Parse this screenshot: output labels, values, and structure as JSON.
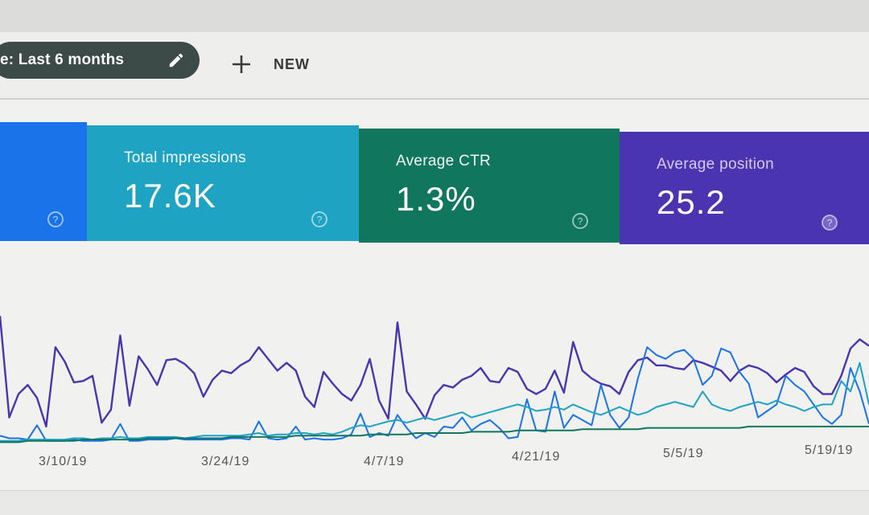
{
  "toolbar": {
    "date_range": "e: Last 6 months",
    "new_label": "NEW"
  },
  "cards": {
    "impressions": {
      "label": "Total impressions",
      "value": "17.6K"
    },
    "ctr": {
      "label": "Average CTR",
      "value": "1.3%"
    },
    "position": {
      "label": "Average position",
      "value": "25.2"
    }
  },
  "colors": {
    "clicks": "#1a73e8",
    "impressions": "#1fa3c3",
    "ctr": "#10775e",
    "position": "#4a34b0"
  },
  "chart_data": {
    "type": "line",
    "x_tick_labels": [
      "3/10/19",
      "3/24/19",
      "4/7/19",
      "4/21/19",
      "5/5/19",
      "5/19/19"
    ],
    "ylim": [
      0,
      1
    ],
    "series": [
      {
        "color": "#4a34b0",
        "values": [
          0.98,
          0.2,
          0.38,
          0.45,
          0.35,
          0.13,
          0.74,
          0.63,
          0.47,
          0.48,
          0.52,
          0.16,
          0.26,
          0.83,
          0.29,
          0.67,
          0.57,
          0.45,
          0.64,
          0.65,
          0.61,
          0.54,
          0.36,
          0.49,
          0.56,
          0.54,
          0.6,
          0.64,
          0.74,
          0.65,
          0.56,
          0.62,
          0.56,
          0.36,
          0.28,
          0.55,
          0.46,
          0.38,
          0.33,
          0.45,
          0.65,
          0.33,
          0.19,
          0.93,
          0.4,
          0.3,
          0.19,
          0.37,
          0.45,
          0.43,
          0.49,
          0.52,
          0.58,
          0.48,
          0.47,
          0.58,
          0.55,
          0.42,
          0.38,
          0.42,
          0.56,
          0.39,
          0.78,
          0.56,
          0.5,
          0.46,
          0.44,
          0.38,
          0.55,
          0.64,
          0.66,
          0.6,
          0.6,
          0.58,
          0.57,
          0.64,
          0.62,
          0.59,
          0.56,
          0.48,
          0.56,
          0.6,
          0.58,
          0.54,
          0.47,
          0.53,
          0.58,
          0.55,
          0.44,
          0.38,
          0.38,
          0.52,
          0.73,
          0.8,
          0.75
        ]
      },
      {
        "color": "#1a73e8",
        "values": [
          0.06,
          0.04,
          0.04,
          0.03,
          0.14,
          0.02,
          0.02,
          0.02,
          0.03,
          0.02,
          0.02,
          0.02,
          0.03,
          0.15,
          0.02,
          0.02,
          0.03,
          0.03,
          0.03,
          0.04,
          0.03,
          0.03,
          0.03,
          0.03,
          0.03,
          0.04,
          0.04,
          0.03,
          0.17,
          0.04,
          0.03,
          0.04,
          0.13,
          0.03,
          0.04,
          0.03,
          0.03,
          0.04,
          0.07,
          0.23,
          0.05,
          0.08,
          0.06,
          0.22,
          0.12,
          0.04,
          0.08,
          0.05,
          0.13,
          0.12,
          0.2,
          0.1,
          0.15,
          0.18,
          0.12,
          0.04,
          0.05,
          0.34,
          0.1,
          0.09,
          0.4,
          0.12,
          0.22,
          0.18,
          0.14,
          0.45,
          0.22,
          0.12,
          0.2,
          0.5,
          0.74,
          0.68,
          0.65,
          0.7,
          0.72,
          0.65,
          0.45,
          0.52,
          0.73,
          0.7,
          0.55,
          0.46,
          0.2,
          0.25,
          0.3,
          0.52,
          0.45,
          0.4,
          0.3,
          0.2,
          0.15,
          0.22,
          0.58,
          0.4,
          0.15
        ]
      },
      {
        "color": "#1fa3c3",
        "values": [
          0.02,
          0.02,
          0.02,
          0.03,
          0.03,
          0.03,
          0.03,
          0.03,
          0.04,
          0.04,
          0.03,
          0.04,
          0.04,
          0.05,
          0.04,
          0.04,
          0.05,
          0.05,
          0.05,
          0.05,
          0.04,
          0.05,
          0.06,
          0.06,
          0.06,
          0.06,
          0.06,
          0.07,
          0.08,
          0.06,
          0.07,
          0.07,
          0.08,
          0.08,
          0.07,
          0.08,
          0.07,
          0.09,
          0.12,
          0.14,
          0.13,
          0.15,
          0.17,
          0.18,
          0.16,
          0.18,
          0.2,
          0.18,
          0.2,
          0.22,
          0.24,
          0.2,
          0.22,
          0.24,
          0.26,
          0.28,
          0.3,
          0.28,
          0.25,
          0.26,
          0.28,
          0.26,
          0.3,
          0.27,
          0.24,
          0.22,
          0.25,
          0.28,
          0.25,
          0.22,
          0.24,
          0.28,
          0.3,
          0.32,
          0.3,
          0.28,
          0.4,
          0.3,
          0.27,
          0.25,
          0.28,
          0.3,
          0.32,
          0.3,
          0.33,
          0.3,
          0.28,
          0.25,
          0.28,
          0.3,
          0.3,
          0.48,
          0.4,
          0.62,
          0.3
        ]
      },
      {
        "color": "#10775e",
        "values": [
          0.01,
          0.01,
          0.01,
          0.02,
          0.02,
          0.02,
          0.02,
          0.02,
          0.02,
          0.03,
          0.03,
          0.03,
          0.03,
          0.03,
          0.03,
          0.03,
          0.04,
          0.04,
          0.04,
          0.04,
          0.04,
          0.04,
          0.04,
          0.04,
          0.04,
          0.05,
          0.05,
          0.05,
          0.05,
          0.05,
          0.05,
          0.05,
          0.06,
          0.06,
          0.06,
          0.06,
          0.06,
          0.06,
          0.06,
          0.06,
          0.07,
          0.07,
          0.07,
          0.07,
          0.07,
          0.08,
          0.08,
          0.08,
          0.08,
          0.08,
          0.08,
          0.09,
          0.09,
          0.09,
          0.09,
          0.09,
          0.1,
          0.1,
          0.1,
          0.1,
          0.1,
          0.1,
          0.1,
          0.11,
          0.11,
          0.11,
          0.11,
          0.11,
          0.11,
          0.11,
          0.12,
          0.12,
          0.12,
          0.12,
          0.12,
          0.12,
          0.12,
          0.12,
          0.12,
          0.12,
          0.12,
          0.13,
          0.13,
          0.13,
          0.13,
          0.13,
          0.13,
          0.13,
          0.13,
          0.13,
          0.13,
          0.13,
          0.13,
          0.13,
          0.13
        ]
      }
    ]
  }
}
